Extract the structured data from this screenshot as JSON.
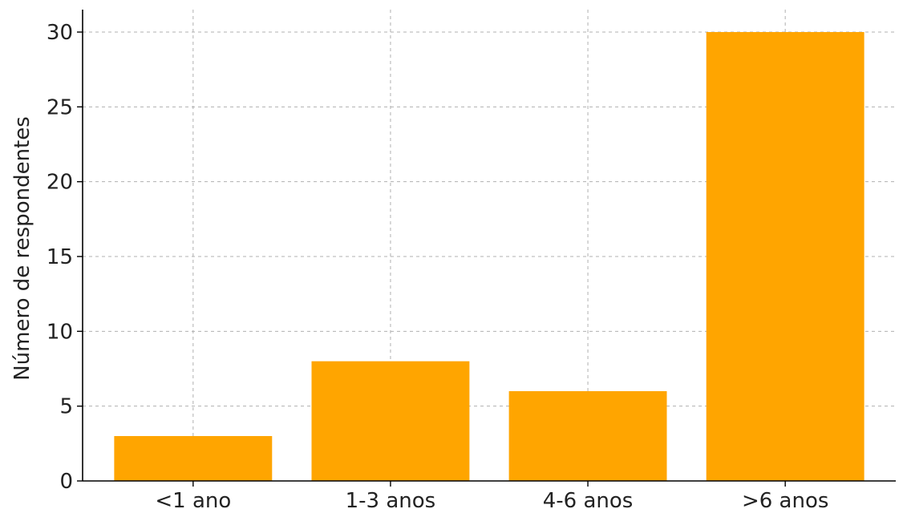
{
  "chart_data": {
    "type": "bar",
    "categories": [
      "<1 ano",
      "1-3 anos",
      "4-6 anos",
      ">6 anos"
    ],
    "values": [
      3,
      8,
      6,
      30
    ],
    "title": "",
    "xlabel": "",
    "ylabel": "Número de respondentes",
    "ylim": [
      0,
      31.5
    ],
    "yticks": [
      0,
      5,
      10,
      15,
      20,
      25,
      30
    ],
    "grid": true,
    "bar_color": "#FFA500"
  }
}
